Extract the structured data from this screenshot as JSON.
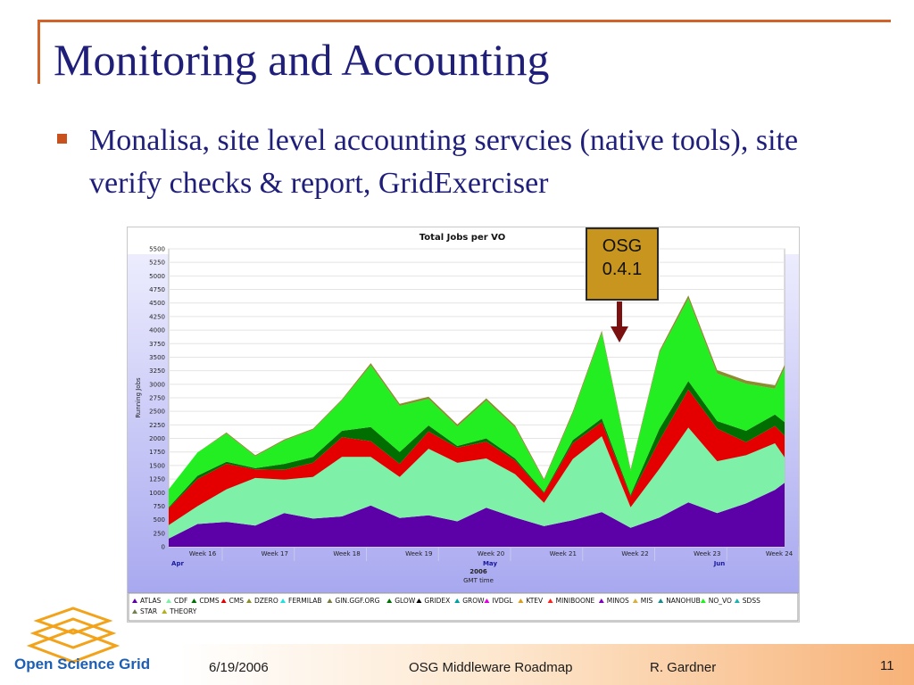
{
  "slide": {
    "title": "Monitoring and Accounting",
    "bullet": "Monalisa, site level accounting servcies (native tools), site verify checks & report, GridExerciser",
    "callout": {
      "line1": "OSG",
      "line2": "0.4.1"
    }
  },
  "footer": {
    "logo_text": "Open Science Grid",
    "date": "6/19/2006",
    "center": "OSG Middleware Roadmap",
    "author": "R. Gardner",
    "page": "11"
  },
  "colors": {
    "title": "#1f1f7a",
    "accent": "#c8511d",
    "callout": "#c8961e",
    "arrow": "#7a1010"
  },
  "chart_data": {
    "type": "area",
    "title": "Total Jobs per VO",
    "ylabel": "Running Jobs",
    "xlabel": "GMT time",
    "year_label": "2006",
    "ylim": [
      0,
      5500
    ],
    "yticks": [
      0,
      250,
      500,
      750,
      1000,
      1250,
      1500,
      1750,
      2000,
      2250,
      2500,
      2750,
      3000,
      3250,
      3500,
      3750,
      4000,
      4250,
      4500,
      4750,
      5000,
      5250,
      5500
    ],
    "week_labels": [
      "Week 16",
      "Week 17",
      "Week 18",
      "Week 19",
      "Week 20",
      "Week 21",
      "Week 22",
      "Week 23",
      "Week 24"
    ],
    "month_labels": [
      "Apr",
      "May",
      "Jun"
    ],
    "grid": true,
    "legend_position": "bottom",
    "x": [
      0,
      3,
      6,
      9,
      12,
      15,
      18,
      21,
      24,
      27,
      30,
      33,
      36,
      39,
      42,
      45,
      48,
      51,
      54,
      57,
      60,
      63,
      64
    ],
    "series": [
      {
        "name": "ATLAS",
        "color": "#5c00a8",
        "values": [
          150,
          420,
          460,
          390,
          620,
          520,
          560,
          760,
          530,
          580,
          470,
          720,
          540,
          380,
          490,
          640,
          350,
          540,
          820,
          620,
          800,
          1050,
          1180
        ]
      },
      {
        "name": "CDF",
        "color": "#7ff0a8",
        "values": [
          250,
          330,
          600,
          880,
          620,
          770,
          1100,
          900,
          760,
          1230,
          1080,
          910,
          800,
          430,
          1130,
          1400,
          380,
          900,
          1380,
          960,
          890,
          860,
          470
        ]
      },
      {
        "name": "CMS",
        "color": "#e40000",
        "values": [
          310,
          500,
          470,
          160,
          180,
          260,
          360,
          290,
          240,
          320,
          280,
          310,
          250,
          180,
          290,
          260,
          200,
          520,
          700,
          600,
          240,
          320,
          400
        ]
      },
      {
        "name": "GLOW",
        "color": "#006e00",
        "values": [
          20,
          60,
          40,
          20,
          110,
          110,
          120,
          260,
          220,
          110,
          30,
          60,
          40,
          20,
          60,
          70,
          30,
          220,
          160,
          140,
          210,
          210,
          250
        ]
      },
      {
        "name": "NO_VO",
        "color": "#22ee22",
        "values": [
          330,
          430,
          520,
          220,
          430,
          500,
          560,
          1140,
          850,
          490,
          360,
          700,
          570,
          210,
          490,
          1580,
          440,
          1400,
          1520,
          880,
          870,
          480,
          1000
        ]
      },
      {
        "name": "DZERO",
        "color": "#8c8c30",
        "values": [
          0,
          0,
          20,
          20,
          20,
          20,
          20,
          40,
          40,
          40,
          40,
          40,
          40,
          30,
          40,
          40,
          30,
          40,
          60,
          60,
          60,
          60,
          60
        ]
      }
    ],
    "legend": [
      {
        "name": "ATLAS",
        "color": "#5c00a8"
      },
      {
        "name": "CDF",
        "color": "#7ff0a8"
      },
      {
        "name": "CDMS",
        "color": "#006e00"
      },
      {
        "name": "CMS",
        "color": "#e40000"
      },
      {
        "name": "DZERO",
        "color": "#8c8c30"
      },
      {
        "name": "FERMILAB",
        "color": "#22e0e0"
      },
      {
        "name": "GIN.GGF.ORG",
        "color": "#7a7a40"
      },
      {
        "name": "GLOW",
        "color": "#006e00"
      },
      {
        "name": "GRIDEX",
        "color": "#000000"
      },
      {
        "name": "GROW",
        "color": "#00a0a0"
      },
      {
        "name": "IVDGL",
        "color": "#e000e0"
      },
      {
        "name": "KTEV",
        "color": "#d8a020"
      },
      {
        "name": "MINIBOONE",
        "color": "#ff2020"
      },
      {
        "name": "MINOS",
        "color": "#8000c0"
      },
      {
        "name": "MIS",
        "color": "#d8b040"
      },
      {
        "name": "NANOHUB",
        "color": "#1a8a8a"
      },
      {
        "name": "NO_VO",
        "color": "#22ee22"
      },
      {
        "name": "SDSS",
        "color": "#20b0b0"
      },
      {
        "name": "STAR",
        "color": "#708050"
      },
      {
        "name": "THEORY",
        "color": "#b0b020"
      }
    ]
  }
}
